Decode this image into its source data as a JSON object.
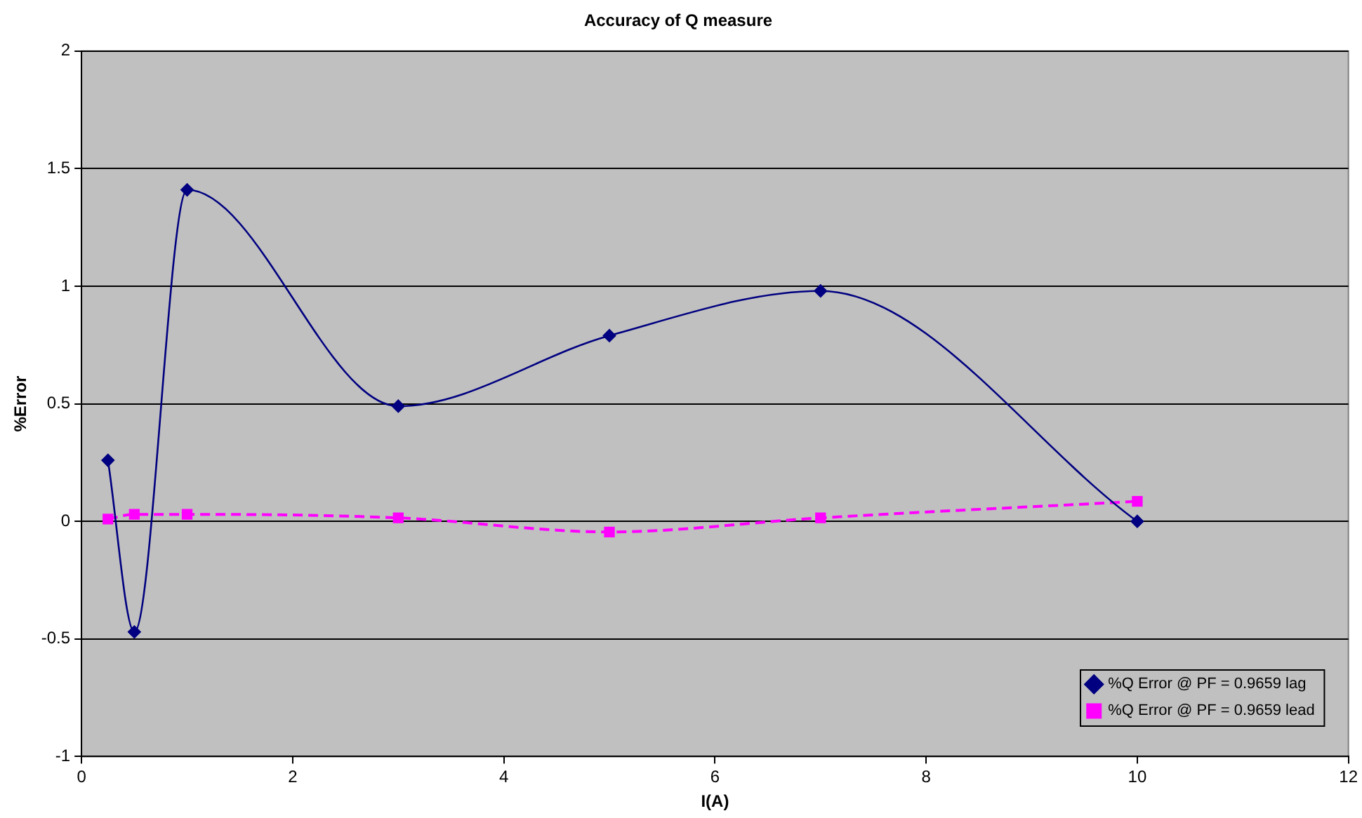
{
  "chart_data": {
    "type": "line",
    "title": "Accuracy of Q measure",
    "xlabel": "I(A)",
    "ylabel": "%Error",
    "x": [
      0.25,
      0.5,
      1,
      3,
      5,
      7,
      10
    ],
    "series": [
      {
        "name": "%Q Error @ PF = 0.9659 lag",
        "color": "#000080",
        "marker": "diamond",
        "line_style": "solid",
        "values": [
          0.26,
          -0.47,
          1.41,
          0.49,
          0.79,
          0.98,
          0
        ]
      },
      {
        "name": "%Q Error @ PF = 0.9659 lead",
        "color": "#ff00ff",
        "marker": "square",
        "line_style": "dashed",
        "values": [
          0.01,
          0.03,
          0.03,
          0.015,
          -0.045,
          0.015,
          0.085
        ]
      }
    ],
    "xlim": [
      0,
      12
    ],
    "xticks": [
      0,
      2,
      4,
      6,
      8,
      10,
      12
    ],
    "ylim": [
      -1,
      2
    ],
    "yticks": [
      -1,
      -0.5,
      0,
      0.5,
      1,
      1.5,
      2
    ],
    "grid": "y",
    "legend": "bottom right"
  }
}
